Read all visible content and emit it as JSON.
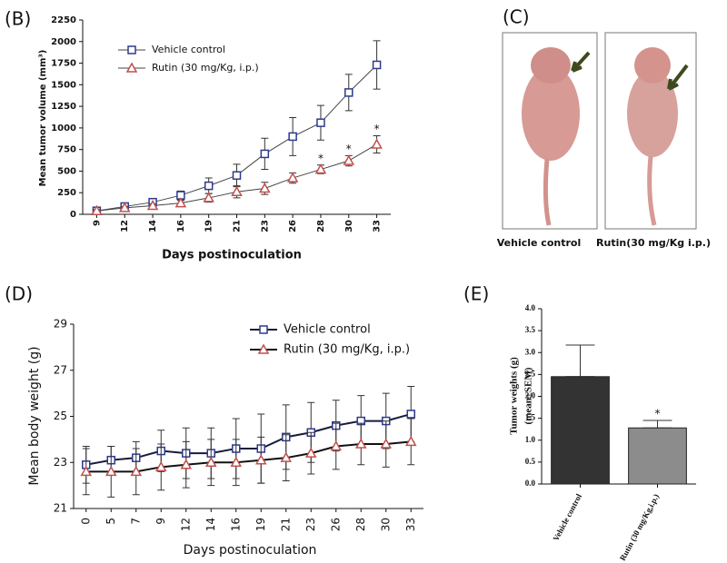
{
  "chart_data": [
    {
      "type": "line",
      "panel": "(B)",
      "xlabel": "Days postinoculation",
      "ylabel": "Mean tumor volume (mm³)",
      "categories": [
        "9",
        "12",
        "14",
        "16",
        "19",
        "21",
        "23",
        "26",
        "28",
        "30",
        "33"
      ],
      "ylim": [
        0,
        2250
      ],
      "yticks": [
        0,
        250,
        500,
        750,
        1000,
        1250,
        1500,
        1750,
        2000,
        2250
      ],
      "series": [
        {
          "name": "Vehicle control",
          "color": "#2e3a8c",
          "line_color": "#444444",
          "marker": "square",
          "values": [
            40,
            90,
            140,
            220,
            330,
            450,
            700,
            900,
            1060,
            1410,
            1730
          ],
          "errors": [
            20,
            20,
            30,
            50,
            90,
            130,
            180,
            220,
            200,
            210,
            280
          ]
        },
        {
          "name": "Rutin (30 mg/Kg, i.p.)",
          "color": "#c0504d",
          "line_color": "#444444",
          "marker": "triangle",
          "values": [
            40,
            75,
            100,
            130,
            190,
            260,
            300,
            420,
            520,
            620,
            810
          ],
          "errors": [
            15,
            15,
            20,
            30,
            50,
            70,
            70,
            60,
            50,
            60,
            100
          ],
          "significance": [
            null,
            null,
            null,
            null,
            null,
            null,
            null,
            null,
            "*",
            "*",
            "*"
          ]
        }
      ]
    },
    {
      "type": "line",
      "panel": "(D)",
      "xlabel": "Days postinoculation",
      "ylabel": "Mean body weight (g)",
      "categories": [
        "0",
        "5",
        "7",
        "9",
        "12",
        "14",
        "16",
        "19",
        "21",
        "23",
        "26",
        "28",
        "30",
        "33"
      ],
      "ylim": [
        21,
        29
      ],
      "yticks": [
        21,
        23,
        25,
        27,
        29
      ],
      "series": [
        {
          "name": "Vehicle control",
          "color": "#2e3a8c",
          "line_color": "#1a1a3a",
          "marker": "square",
          "values": [
            22.9,
            23.1,
            23.2,
            23.5,
            23.4,
            23.4,
            23.6,
            23.6,
            24.1,
            24.3,
            24.6,
            24.8,
            24.8,
            25.1
          ],
          "errors": [
            0.8,
            0.6,
            0.7,
            0.9,
            1.1,
            1.1,
            1.3,
            1.5,
            1.4,
            1.3,
            1.1,
            1.1,
            1.2,
            1.2
          ]
        },
        {
          "name": "Rutin (30 mg/Kg, i.p.)",
          "color": "#c0504d",
          "line_color": "#111111",
          "marker": "triangle",
          "values": [
            22.6,
            22.6,
            22.6,
            22.8,
            22.9,
            23.0,
            23.0,
            23.1,
            23.2,
            23.4,
            23.7,
            23.8,
            23.8,
            23.9
          ],
          "errors": [
            1.0,
            1.1,
            1.0,
            1.0,
            1.0,
            1.0,
            1.0,
            1.0,
            1.0,
            0.9,
            1.0,
            0.9,
            1.0,
            1.0
          ]
        }
      ]
    },
    {
      "type": "bar",
      "panel": "(E)",
      "ylabel": [
        "Tumor weights (g)",
        "(mean±SEM)"
      ],
      "categories": [
        "Vehicle control",
        "Rutin (30 mg/Kg,i.p.)"
      ],
      "values": [
        2.45,
        1.28
      ],
      "errors": [
        0.72,
        0.17
      ],
      "colors": [
        "#333333",
        "#8c8c8c"
      ],
      "significance": [
        null,
        "*"
      ],
      "ylim": [
        0,
        4
      ],
      "yticks": [
        {
          "value": 0,
          "label": "0.0"
        },
        {
          "value": 0.5,
          "label": "0.5"
        },
        {
          "value": 1,
          "label": "1.0"
        },
        {
          "value": 1.5,
          "label": "1.5"
        },
        {
          "value": 2,
          "label": "2.0"
        },
        {
          "value": 2.5,
          "label": "2.5"
        },
        {
          "value": 3,
          "label": "3.0"
        },
        {
          "value": 3.5,
          "label": "3.5"
        },
        {
          "value": 4,
          "label": "4.0"
        }
      ]
    }
  ],
  "image_panel": {
    "panel": "(C)",
    "labels": [
      "Vehicle control",
      "Rutin(30 mg/Kg i.p.)"
    ]
  }
}
